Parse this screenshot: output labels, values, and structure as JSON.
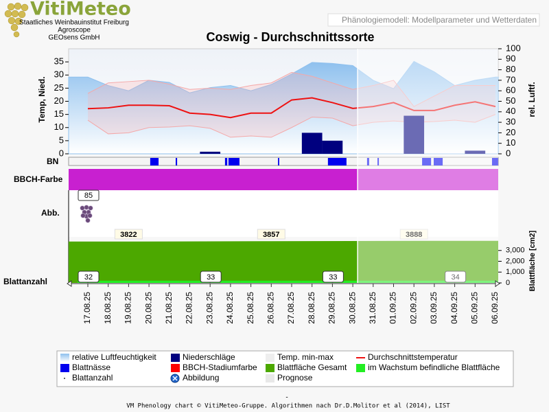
{
  "header": {
    "logo": "VitiMeteo",
    "lines": [
      "Staatliches Weinbauinstitut Freiburg",
      "Agroscope",
      "GEOsens GmbH"
    ],
    "tab": "Phänologiemodell: Modellparameter und Wetterdaten"
  },
  "chart_data": {
    "type": "phenology",
    "title": "Coswig - Durchschnittssorte",
    "categories": [
      "17.08.25",
      "18.08.25",
      "19.08.25",
      "20.08.25",
      "21.08.25",
      "22.08.25",
      "23.08.25",
      "24.08.25",
      "25.08.25",
      "26.08.25",
      "27.08.25",
      "28.08.25",
      "29.08.25",
      "30.08.25",
      "31.08.25",
      "01.09.25",
      "02.09.25",
      "03.09.25",
      "04.09.25",
      "05.09.25",
      "06.09.25"
    ],
    "ylabel": "Temp, Nied.",
    "y2label": "rel. Luftf.",
    "ylim": [
      0,
      40
    ],
    "yticks": [
      0,
      5,
      10,
      15,
      20,
      25,
      30,
      35
    ],
    "y2lim": [
      0,
      100
    ],
    "y2ticks": [
      0,
      10,
      20,
      30,
      40,
      50,
      60,
      70,
      80,
      90,
      100
    ],
    "series": [
      {
        "color": "#8ec0ee",
        "axis": "y2",
        "values": [
          73,
          65,
          60,
          70,
          68,
          58,
          63,
          65,
          60,
          66,
          76,
          87,
          86,
          84,
          70,
          62,
          88,
          78,
          65,
          70,
          73
        ]
      },
      {
        "color": "#00007f",
        "values": [
          0,
          0,
          0,
          0,
          0,
          0,
          0.8,
          0,
          0,
          0,
          0,
          8,
          5,
          0,
          0,
          0,
          14.5,
          0,
          0,
          1.2,
          0
        ]
      },
      {
        "color": "#ee1111",
        "values": [
          17.2,
          17.5,
          18.5,
          18.5,
          18.3,
          15.5,
          15,
          13.8,
          15.5,
          15.5,
          20.5,
          21.3,
          19.5,
          17.3,
          18,
          19.5,
          16.5,
          16.5,
          18.5,
          19.8,
          18
        ]
      }
    ],
    "temp_range": {
      "color": "#f4a8a8",
      "min": [
        12.8,
        7.6,
        8,
        10,
        10.2,
        10.7,
        9.7,
        6.3,
        6.8,
        6.3,
        10,
        14,
        13.6,
        10.7,
        12,
        12.5,
        12,
        12.3,
        12.8,
        12,
        15
      ],
      "max": [
        23,
        27,
        27.5,
        28,
        26.5,
        24.5,
        25,
        24.5,
        26,
        27,
        31,
        29.5,
        27,
        24.5,
        26,
        28,
        18,
        22,
        26,
        26,
        26
      ]
    },
    "leaf_wetness": {
      "label": "BN",
      "color": "#0000ee",
      "intervals": [
        [
          3.06,
          3.47
        ],
        [
          4.31,
          4.38
        ],
        [
          6.73,
          6.84
        ],
        [
          6.9,
          7.44
        ],
        [
          9.33,
          9.39
        ],
        [
          11.78,
          12.69
        ],
        [
          13.7,
          13.8
        ],
        [
          14.21,
          14.28
        ],
        [
          16.4,
          16.84
        ],
        [
          16.97,
          17.41
        ],
        [
          19.83,
          20.13
        ]
      ]
    },
    "bbch": {
      "label": "BBCH-Farbe",
      "color": "#c820d0"
    },
    "abb": {
      "label": "Abb.",
      "stage": 85,
      "x": "17.08.25"
    },
    "leaf_area": {
      "label": "Blattfläche [cm2]",
      "ylim": [
        0,
        4000
      ],
      "yticks": [
        0,
        {
          "value": 1000,
          "label": "1,000"
        },
        {
          "value": 2000,
          "label": "2,000"
        },
        {
          "value": 3000,
          "label": "3,000"
        }
      ],
      "color": "#4ca800",
      "x": [
        "19.08.25",
        "26.08.25",
        "02.09.25"
      ],
      "values": [
        3822,
        3857,
        3888
      ],
      "growing_color": "#22ee22",
      "growing": [
        200,
        200,
        200,
        200,
        200,
        200,
        200,
        200,
        200,
        200,
        200,
        200,
        200,
        200,
        200,
        200,
        200,
        200,
        200,
        200,
        200
      ]
    },
    "leaf_count": {
      "label": "Blattanzahl",
      "x": [
        "17.08.25",
        "23.08.25",
        "29.08.25",
        "04.09.25"
      ],
      "values": [
        32,
        33,
        33,
        34
      ]
    },
    "prognose_from": "30.08.25",
    "legend": [
      {
        "name": "relative Luftfeuchtigkeit",
        "symbol": "gradient",
        "color": "#8ec0ee"
      },
      {
        "name": "Niederschläge",
        "symbol": "square",
        "color": "#00007f"
      },
      {
        "name": "Temp. min-max",
        "symbol": "square",
        "color": "#eeeeee"
      },
      {
        "name": "Durchschnittstemperatur",
        "symbol": "line",
        "color": "#ee1111"
      },
      {
        "name": "Blattnässe",
        "symbol": "square",
        "color": "#0000ee"
      },
      {
        "name": "BBCH-Stadiumfarbe",
        "symbol": "square",
        "color": "#ff0000"
      },
      {
        "name": "Blattfläche Gesamt",
        "symbol": "square",
        "color": "#4ca800"
      },
      {
        "name": "im Wachstum befindliche Blattfläche",
        "symbol": "square",
        "color": "#22ee22"
      },
      {
        "name": "Blattanzahl",
        "symbol": "dot",
        "color": "#333333"
      },
      {
        "name": "Abbildung",
        "symbol": "circle",
        "color": "#2266cc"
      },
      {
        "name": "Prognose",
        "symbol": "square",
        "color": "#e8e8e8"
      }
    ]
  },
  "footer": {
    "mark": "-",
    "text": "VM Phenology chart © VitiMeteo-Gruppe. Algorithmen nach Dr.D.Molitor et al (2014), LIST"
  }
}
